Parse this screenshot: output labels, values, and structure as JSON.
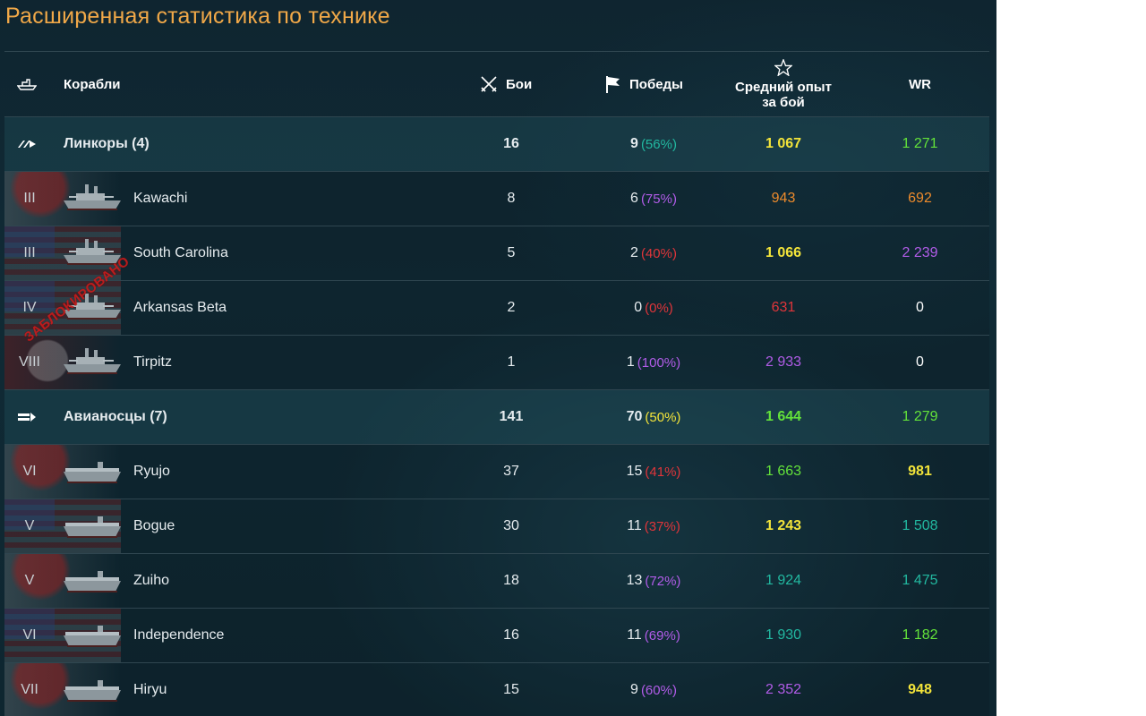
{
  "title": "Расширенная статистика по технике",
  "headers": {
    "ships": "Корабли",
    "battles": "Бои",
    "wins": "Победы",
    "avg_exp_line1": "Средний опыт",
    "avg_exp_line2": "за бой",
    "wr": "WR"
  },
  "icons": {
    "ships_col": "ship-class-icon",
    "battles_col": "crossed-swords-icon",
    "wins_col": "flag-icon",
    "exp_col": "star-outline-icon",
    "battleship_group": "battleship-class-icon",
    "carrier_group": "carrier-class-icon"
  },
  "colors": {
    "title": "#f0a848",
    "teal": "#22b8a0",
    "purple": "#b15ce8",
    "red": "#e0353a",
    "orange": "#ee8b2c",
    "yellow": "#f3e43a",
    "green": "#63e23a",
    "white": "#ffffff"
  },
  "rows": [
    {
      "type": "group",
      "name": "Линкоры (4)",
      "battles": "16",
      "wins": "9",
      "wins_pct": "(56%)",
      "pct_color": "teal",
      "avg_exp": "1 067",
      "exp_color": "yellow",
      "wr": "1 271",
      "wr_color": "green"
    },
    {
      "type": "ship",
      "tier": "III",
      "flag": "jp",
      "name": "Kawachi",
      "battles": "8",
      "wins": "6",
      "wins_pct": "(75%)",
      "pct_color": "purple",
      "avg_exp": "943",
      "exp_color": "orange",
      "wr": "692",
      "wr_color": "orange"
    },
    {
      "type": "ship",
      "tier": "III",
      "flag": "us",
      "name": "South Carolina",
      "battles": "5",
      "wins": "2",
      "wins_pct": "(40%)",
      "pct_color": "red",
      "avg_exp": "1 066",
      "exp_color": "yellow",
      "wr": "2 239",
      "wr_color": "purple"
    },
    {
      "type": "ship",
      "tier": "IV",
      "flag": "us",
      "name": "Arkansas Beta",
      "battles": "2",
      "wins": "0",
      "wins_pct": "(0%)",
      "pct_color": "red",
      "avg_exp": "631",
      "exp_color": "red",
      "wr": "0",
      "wr_color": "white"
    },
    {
      "type": "ship",
      "tier": "VIII",
      "flag": "de",
      "name": "Tirpitz",
      "battles": "1",
      "wins": "1",
      "wins_pct": "(100%)",
      "pct_color": "purple",
      "avg_exp": "2 933",
      "exp_color": "purple",
      "wr": "0",
      "wr_color": "white"
    },
    {
      "type": "group",
      "name": "Авианосцы (7)",
      "battles": "141",
      "wins": "70",
      "wins_pct": "(50%)",
      "pct_color": "yellow",
      "avg_exp": "1 644",
      "exp_color": "green",
      "wr": "1 279",
      "wr_color": "green"
    },
    {
      "type": "ship",
      "tier": "VI",
      "flag": "jp",
      "name": "Ryujo",
      "battles": "37",
      "wins": "15",
      "wins_pct": "(41%)",
      "pct_color": "red",
      "avg_exp": "1 663",
      "exp_color": "green",
      "wr": "981",
      "wr_color": "yellow"
    },
    {
      "type": "ship",
      "tier": "V",
      "flag": "us",
      "name": "Bogue",
      "battles": "30",
      "wins": "11",
      "wins_pct": "(37%)",
      "pct_color": "red",
      "avg_exp": "1 243",
      "exp_color": "yellow",
      "wr": "1 508",
      "wr_color": "teal"
    },
    {
      "type": "ship",
      "tier": "V",
      "flag": "jp",
      "name": "Zuiho",
      "battles": "18",
      "wins": "13",
      "wins_pct": "(72%)",
      "pct_color": "purple",
      "avg_exp": "1 924",
      "exp_color": "teal",
      "wr": "1 475",
      "wr_color": "teal"
    },
    {
      "type": "ship",
      "tier": "VI",
      "flag": "us",
      "name": "Independence",
      "battles": "16",
      "wins": "11",
      "wins_pct": "(69%)",
      "pct_color": "purple",
      "avg_exp": "1 930",
      "exp_color": "teal",
      "wr": "1 182",
      "wr_color": "green"
    },
    {
      "type": "ship",
      "tier": "VII",
      "flag": "jp",
      "name": "Hiryu",
      "battles": "15",
      "wins": "9",
      "wins_pct": "(60%)",
      "pct_color": "purple",
      "avg_exp": "2 352",
      "exp_color": "purple",
      "wr": "948",
      "wr_color": "yellow"
    }
  ],
  "watermark": "ЗАБЛОКИРОВАНО"
}
